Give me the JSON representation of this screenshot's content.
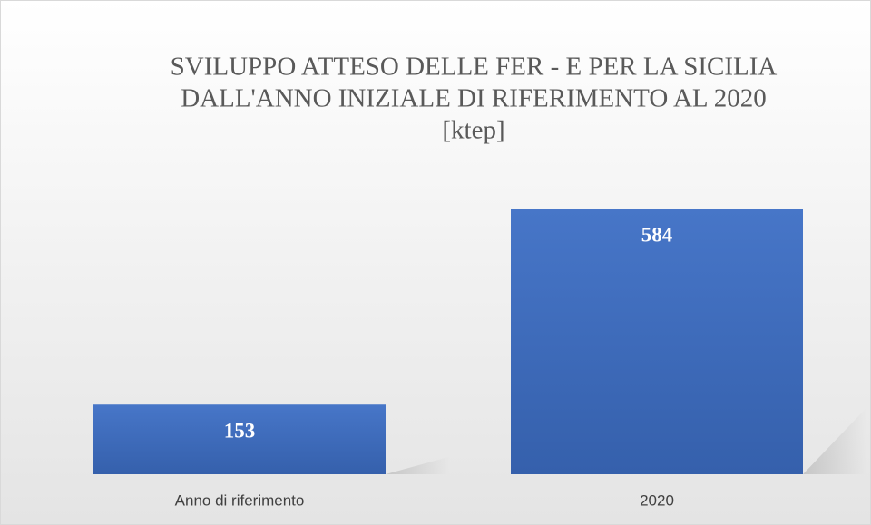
{
  "chart_data": {
    "type": "bar",
    "title": [
      "SVILUPPO ATTESO DELLE FER - E PER LA SICILIA",
      "DALL'ANNO INIZIALE DI RIFERIMENTO AL 2020"
    ],
    "subtitle": "[ktep]",
    "categories": [
      "Anno di riferimento",
      "2020"
    ],
    "values": [
      153,
      584
    ],
    "color": "#4472c4"
  }
}
